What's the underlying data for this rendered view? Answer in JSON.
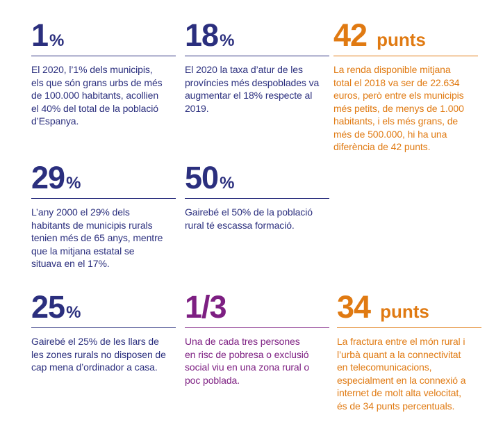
{
  "colors": {
    "navy": "#2b2f7e",
    "purple": "#7d1f82",
    "orange": "#e07a12"
  },
  "stats": [
    {
      "number": "1",
      "unit": "%",
      "color": "navy",
      "lines": [
        "El 2020, l’1% dels municipis,",
        "els que són grans urbs de més",
        "de 100.000 habitants, acollien",
        "el 40% del total de la població",
        "d’Espanya."
      ]
    },
    {
      "number": "18",
      "unit": "%",
      "color": "navy",
      "lines": [
        "El 2020 la taxa d’atur de les",
        "províncies més despoblades va",
        "augmentar el 18% respecte al",
        "2019."
      ]
    },
    {
      "number": "42",
      "unit": "punts",
      "color": "orange",
      "lines": [
        "La renda disponible mitjana",
        "total el 2018 va ser de 22.634",
        "euros, però entre els municipis",
        "més petits, de menys de 1.000",
        "habitants, i els més grans, de",
        "més de 500.000, hi ha una",
        "diferència de 42 punts."
      ]
    },
    {
      "number": "29",
      "unit": "%",
      "color": "navy",
      "lines": [
        "L’any 2000 el 29% dels",
        "habitants de municipis rurals",
        "tenien més de 65 anys, mentre",
        "que la mitjana estatal se",
        "situava en el 17%."
      ]
    },
    {
      "number": "50",
      "unit": "%",
      "color": "navy",
      "lines": [
        "Gairebé el 50% de la població",
        "rural té escassa formació."
      ]
    },
    {
      "number": "25",
      "unit": "%",
      "color": "navy",
      "lines": [
        "Gairebé el 25% de les llars de",
        "les zones rurals no disposen de",
        "cap mena d’ordinador a casa."
      ]
    },
    {
      "number": "1/3",
      "unit": "",
      "color": "purple",
      "lines": [
        "Una de cada tres persones",
        "en risc de pobresa o exclusió",
        "social viu en una zona rural o",
        "poc poblada."
      ]
    },
    {
      "number": "34",
      "unit": "punts",
      "color": "orange",
      "lines": [
        "La fractura entre el món rural i",
        "l’urbà quant a la connectivitat",
        "en telecomunicacions,",
        "especialment en la connexió a",
        "internet de molt alta velocitat,",
        "és de 34 punts percentuals."
      ]
    }
  ]
}
